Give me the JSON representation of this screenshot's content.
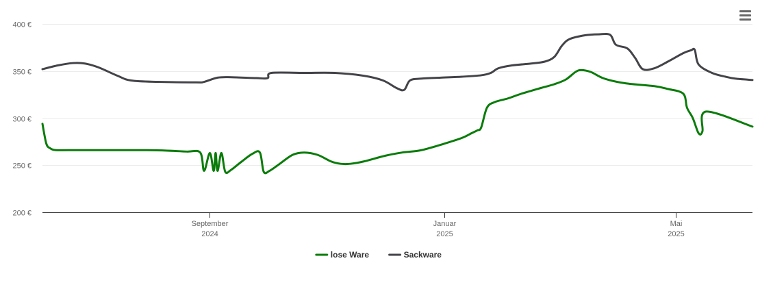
{
  "menu": {
    "icon": "hamburger-menu-icon"
  },
  "chart_data": {
    "type": "line",
    "title": "",
    "xlabel": "",
    "ylabel": "",
    "ylim": [
      200,
      400
    ],
    "y_ticks": [
      {
        "value": 200,
        "label": "200 €"
      },
      {
        "value": 250,
        "label": "250 €"
      },
      {
        "value": 300,
        "label": "300 €"
      },
      {
        "value": 350,
        "label": "350 €"
      },
      {
        "value": 400,
        "label": "400 €"
      }
    ],
    "xlim": [
      "2024-06-06",
      "2025-06-10"
    ],
    "x_ticks": [
      {
        "date": "2024-09-01",
        "line1": "September",
        "line2": "2024"
      },
      {
        "date": "2025-01-01",
        "line1": "Januar",
        "line2": "2025"
      },
      {
        "date": "2025-05-01",
        "line1": "Mai",
        "line2": "2025"
      }
    ],
    "grid": true,
    "legend_position": "bottom",
    "series": [
      {
        "name": "lose Ware",
        "color": "#0a7c0a",
        "points": [
          [
            "2024-06-06",
            294
          ],
          [
            "2024-06-08",
            273
          ],
          [
            "2024-06-10",
            268
          ],
          [
            "2024-06-13",
            266
          ],
          [
            "2024-06-20",
            266
          ],
          [
            "2024-07-10",
            266
          ],
          [
            "2024-07-30",
            266
          ],
          [
            "2024-08-10",
            265.5
          ],
          [
            "2024-08-20",
            264.5
          ],
          [
            "2024-08-27",
            263.5
          ],
          [
            "2024-08-29",
            244
          ],
          [
            "2024-09-01",
            263
          ],
          [
            "2024-09-03",
            244
          ],
          [
            "2024-09-04",
            263
          ],
          [
            "2024-09-05",
            244
          ],
          [
            "2024-09-07",
            263
          ],
          [
            "2024-09-09",
            243
          ],
          [
            "2024-09-12",
            245
          ],
          [
            "2024-09-17",
            253
          ],
          [
            "2024-09-23",
            262
          ],
          [
            "2024-09-27",
            263.5
          ],
          [
            "2024-09-29",
            243
          ],
          [
            "2024-10-02",
            244
          ],
          [
            "2024-10-07",
            251
          ],
          [
            "2024-10-14",
            261
          ],
          [
            "2024-10-20",
            263.5
          ],
          [
            "2024-10-27",
            261
          ],
          [
            "2024-11-03",
            254
          ],
          [
            "2024-11-08",
            251.5
          ],
          [
            "2024-11-13",
            251.5
          ],
          [
            "2024-11-20",
            254
          ],
          [
            "2024-12-01",
            260
          ],
          [
            "2024-12-10",
            263.5
          ],
          [
            "2024-12-20",
            266
          ],
          [
            "2025-01-01",
            273
          ],
          [
            "2025-01-10",
            279
          ],
          [
            "2025-01-15",
            284
          ],
          [
            "2025-01-18",
            287
          ],
          [
            "2025-01-20",
            290
          ],
          [
            "2025-01-23",
            311
          ],
          [
            "2025-01-27",
            317
          ],
          [
            "2025-02-03",
            321
          ],
          [
            "2025-02-10",
            326
          ],
          [
            "2025-02-20",
            332
          ],
          [
            "2025-02-27",
            336
          ],
          [
            "2025-03-05",
            341
          ],
          [
            "2025-03-10",
            349
          ],
          [
            "2025-03-13",
            351
          ],
          [
            "2025-03-18",
            349
          ],
          [
            "2025-03-25",
            342
          ],
          [
            "2025-04-05",
            337
          ],
          [
            "2025-04-20",
            334
          ],
          [
            "2025-04-27",
            331
          ],
          [
            "2025-05-05",
            326
          ],
          [
            "2025-05-07",
            311
          ],
          [
            "2025-05-10",
            300
          ],
          [
            "2025-05-13",
            284
          ],
          [
            "2025-05-15",
            286
          ],
          [
            "2025-05-17",
            307
          ],
          [
            "2025-06-10",
            291
          ]
        ]
      },
      {
        "name": "Sackware",
        "color": "#434348",
        "points": [
          [
            "2024-06-06",
            352
          ],
          [
            "2024-06-14",
            356
          ],
          [
            "2024-06-22",
            358.5
          ],
          [
            "2024-06-28",
            358
          ],
          [
            "2024-07-05",
            354
          ],
          [
            "2024-07-15",
            345
          ],
          [
            "2024-07-22",
            340
          ],
          [
            "2024-08-05",
            338.5
          ],
          [
            "2024-08-25",
            338
          ],
          [
            "2024-08-29",
            338.5
          ],
          [
            "2024-09-05",
            343
          ],
          [
            "2024-09-12",
            343.5
          ],
          [
            "2024-09-25",
            342.5
          ],
          [
            "2024-10-01",
            342.5
          ],
          [
            "2024-10-03",
            348
          ],
          [
            "2024-10-20",
            348
          ],
          [
            "2024-11-05",
            348
          ],
          [
            "2024-11-20",
            345
          ],
          [
            "2024-11-30",
            340
          ],
          [
            "2024-12-07",
            332
          ],
          [
            "2024-12-11",
            330
          ],
          [
            "2024-12-14",
            340
          ],
          [
            "2024-12-20",
            342
          ],
          [
            "2024-12-30",
            343
          ],
          [
            "2025-01-10",
            344
          ],
          [
            "2025-01-20",
            345.5
          ],
          [
            "2025-01-25",
            348
          ],
          [
            "2025-01-29",
            353
          ],
          [
            "2025-02-05",
            356
          ],
          [
            "2025-02-15",
            358
          ],
          [
            "2025-02-22",
            360
          ],
          [
            "2025-02-27",
            365
          ],
          [
            "2025-03-03",
            377
          ],
          [
            "2025-03-07",
            384
          ],
          [
            "2025-03-15",
            388
          ],
          [
            "2025-03-22",
            389
          ],
          [
            "2025-03-28",
            388.5
          ],
          [
            "2025-03-31",
            378
          ],
          [
            "2025-04-06",
            374
          ],
          [
            "2025-04-10",
            364
          ],
          [
            "2025-04-14",
            352
          ],
          [
            "2025-04-20",
            353
          ],
          [
            "2025-04-27",
            360
          ],
          [
            "2025-05-05",
            369
          ],
          [
            "2025-05-09",
            372
          ],
          [
            "2025-05-11",
            372.5
          ],
          [
            "2025-05-13",
            357
          ],
          [
            "2025-05-20",
            348
          ],
          [
            "2025-05-27",
            344
          ],
          [
            "2025-06-01",
            342
          ],
          [
            "2025-06-10",
            340.5
          ]
        ]
      }
    ]
  }
}
